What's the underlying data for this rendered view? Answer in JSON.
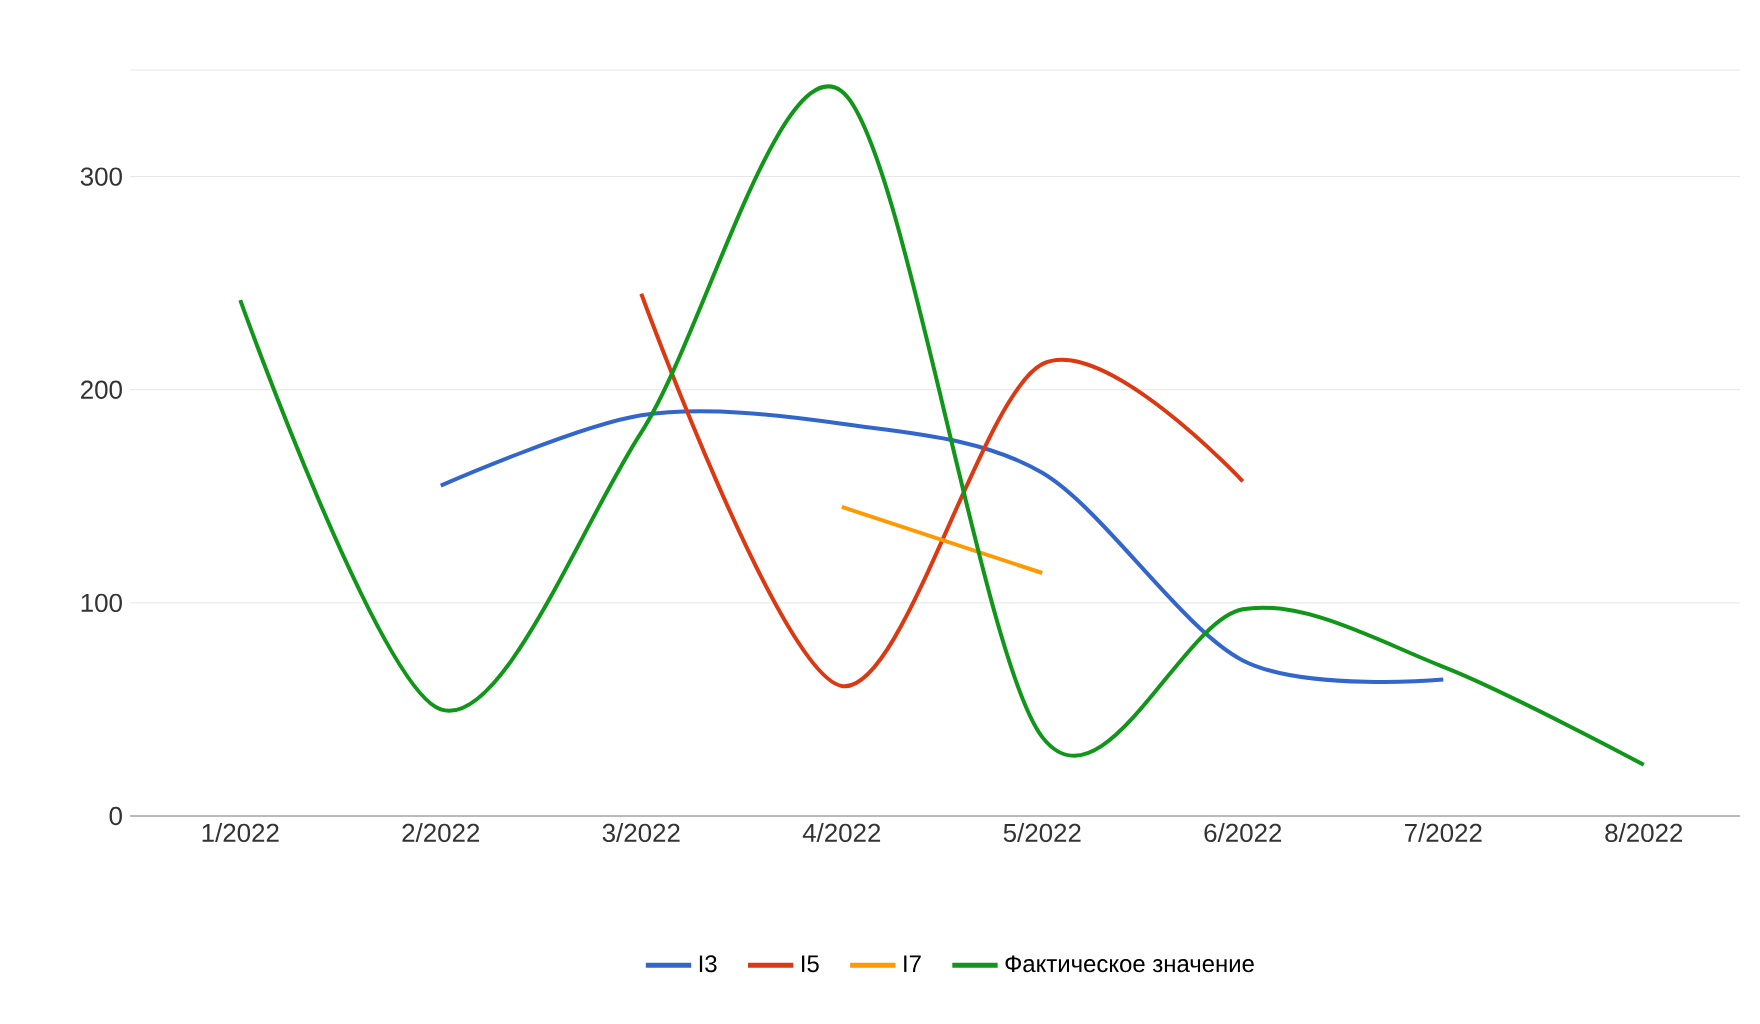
{
  "chart_data": {
    "type": "line",
    "categories": [
      "1/2022",
      "2/2022",
      "3/2022",
      "4/2022",
      "5/2022",
      "6/2022",
      "7/2022",
      "8/2022"
    ],
    "series": [
      {
        "name": "I3",
        "color": "#3366cc",
        "values": [
          null,
          155,
          188,
          184,
          161,
          73,
          64,
          null
        ]
      },
      {
        "name": "I5",
        "color": "#dc3912",
        "values": [
          null,
          null,
          245,
          61,
          212,
          157,
          null,
          null
        ]
      },
      {
        "name": "I7",
        "color": "#ff9900",
        "values": [
          null,
          null,
          null,
          145,
          114,
          null,
          null,
          null
        ]
      },
      {
        "name": "Фактическое значение",
        "color": "#109618",
        "values": [
          242,
          50,
          180,
          340,
          37,
          97,
          70,
          24
        ]
      }
    ],
    "ylim": [
      0,
      350
    ],
    "yticks": [
      0,
      100,
      200,
      300,
      {
        "value": 350,
        "label": null
      }
    ],
    "grid": "y",
    "legend": "bottom"
  }
}
